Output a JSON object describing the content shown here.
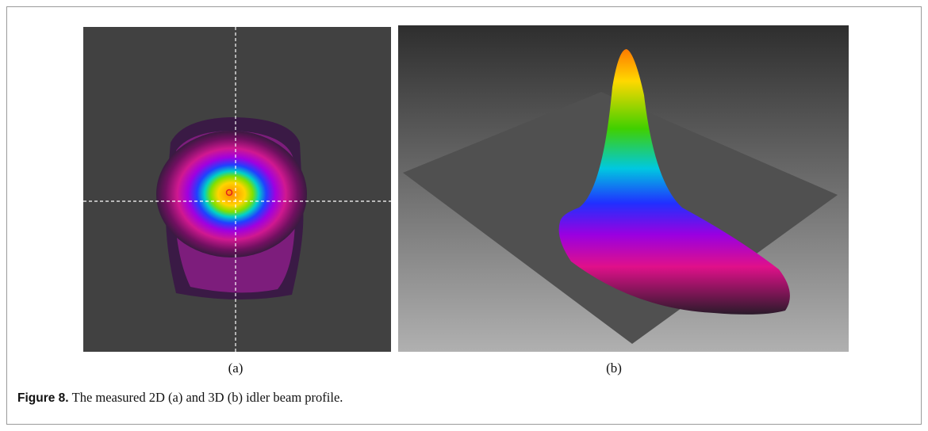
{
  "figure": {
    "panels": [
      {
        "label": "(a)"
      },
      {
        "label": "(b)"
      }
    ],
    "caption": {
      "label": "Figure 8.",
      "text": "The measured 2D (a) and 3D (b) idler beam profile."
    }
  }
}
